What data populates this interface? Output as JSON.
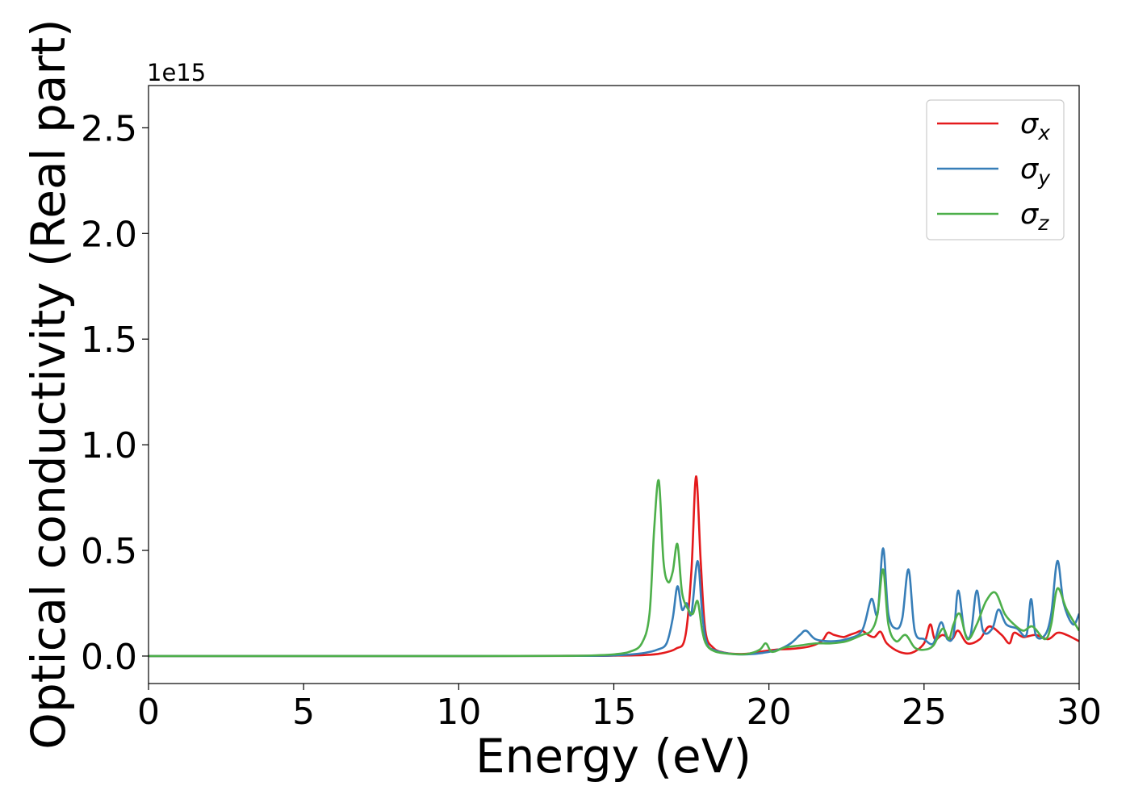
{
  "chart_data": {
    "type": "line",
    "xlabel": "Energy (eV)",
    "ylabel": "Optical conductivity (Real part)",
    "y_offset_label": "1e15",
    "xlim": [
      0,
      30
    ],
    "ylim": [
      -0.13,
      2.7
    ],
    "y_unit_multiplier": 1000000000000000.0,
    "x_ticks": [
      0,
      5,
      10,
      15,
      20,
      25,
      30
    ],
    "x_tick_labels": [
      "0",
      "5",
      "10",
      "15",
      "20",
      "25",
      "30"
    ],
    "y_ticks": [
      0.0,
      0.5,
      1.0,
      1.5,
      2.0,
      2.5
    ],
    "y_tick_labels": [
      "0.0",
      "0.5",
      "1.0",
      "1.5",
      "2.0",
      "2.5"
    ],
    "grid": false,
    "legend_position": "top-right",
    "series": [
      {
        "name": "σx",
        "symbol": "σ",
        "subscript": "x",
        "color": "#e41a1c",
        "x": [
          0,
          10,
          14,
          15,
          16,
          16.5,
          17.0,
          17.3,
          17.5,
          17.65,
          17.8,
          17.95,
          18.2,
          18.6,
          19.2,
          19.7,
          20.2,
          20.8,
          21.3,
          21.7,
          21.9,
          22.1,
          22.4,
          22.6,
          22.8,
          23.0,
          23.2,
          23.4,
          23.6,
          23.8,
          24.2,
          24.6,
          25.0,
          25.2,
          25.35,
          25.6,
          25.9,
          26.1,
          26.4,
          26.8,
          27.1,
          27.5,
          27.75,
          27.9,
          28.2,
          28.6,
          29.0,
          29.3,
          29.6,
          30.0
        ],
        "y": [
          0.0,
          0.0,
          0.001,
          0.002,
          0.005,
          0.012,
          0.035,
          0.09,
          0.4,
          0.85,
          0.45,
          0.12,
          0.04,
          0.015,
          0.01,
          0.02,
          0.03,
          0.035,
          0.045,
          0.07,
          0.11,
          0.1,
          0.09,
          0.1,
          0.11,
          0.12,
          0.1,
          0.09,
          0.115,
          0.06,
          0.02,
          0.015,
          0.06,
          0.15,
          0.08,
          0.1,
          0.08,
          0.12,
          0.06,
          0.08,
          0.14,
          0.1,
          0.06,
          0.11,
          0.09,
          0.1,
          0.08,
          0.11,
          0.1,
          0.07
        ]
      },
      {
        "name": "σy",
        "symbol": "σ",
        "subscript": "y",
        "color": "#377eb8",
        "x": [
          0,
          10,
          14,
          15,
          15.5,
          16.0,
          16.4,
          16.7,
          16.9,
          17.05,
          17.2,
          17.35,
          17.5,
          17.7,
          17.85,
          18.0,
          18.3,
          18.8,
          19.3,
          19.8,
          20.3,
          20.7,
          21.0,
          21.2,
          21.5,
          22.0,
          22.5,
          23.0,
          23.3,
          23.5,
          23.68,
          23.85,
          24.1,
          24.3,
          24.5,
          24.7,
          25.0,
          25.3,
          25.55,
          25.75,
          25.95,
          26.1,
          26.3,
          26.5,
          26.7,
          26.9,
          27.2,
          27.4,
          27.65,
          28.0,
          28.3,
          28.45,
          28.6,
          28.9,
          29.1,
          29.3,
          29.5,
          29.8,
          30.0
        ],
        "y": [
          0.0,
          0.0,
          0.001,
          0.003,
          0.007,
          0.015,
          0.03,
          0.06,
          0.18,
          0.33,
          0.22,
          0.25,
          0.2,
          0.45,
          0.2,
          0.06,
          0.025,
          0.01,
          0.008,
          0.015,
          0.03,
          0.06,
          0.1,
          0.12,
          0.08,
          0.07,
          0.08,
          0.12,
          0.27,
          0.2,
          0.51,
          0.2,
          0.13,
          0.18,
          0.41,
          0.12,
          0.08,
          0.06,
          0.16,
          0.08,
          0.1,
          0.31,
          0.12,
          0.1,
          0.31,
          0.12,
          0.13,
          0.22,
          0.15,
          0.13,
          0.1,
          0.27,
          0.1,
          0.1,
          0.2,
          0.45,
          0.25,
          0.15,
          0.2
        ]
      },
      {
        "name": "σz",
        "symbol": "σ",
        "subscript": "z",
        "color": "#4daf4a",
        "x": [
          0,
          10,
          13.5,
          14.5,
          15.0,
          15.5,
          15.9,
          16.15,
          16.3,
          16.45,
          16.6,
          16.75,
          16.9,
          17.05,
          17.2,
          17.4,
          17.55,
          17.7,
          17.85,
          18.0,
          18.3,
          18.8,
          19.3,
          19.7,
          19.9,
          20.1,
          20.5,
          21.0,
          21.5,
          22.0,
          22.5,
          23.0,
          23.3,
          23.5,
          23.68,
          23.85,
          24.1,
          24.4,
          24.7,
          25.0,
          25.3,
          25.6,
          25.8,
          25.95,
          26.15,
          26.4,
          26.7,
          27.0,
          27.3,
          27.6,
          27.9,
          28.2,
          28.5,
          28.9,
          29.1,
          29.3,
          29.6,
          30.0
        ],
        "y": [
          0.0,
          0.0,
          0.001,
          0.004,
          0.008,
          0.02,
          0.06,
          0.2,
          0.6,
          0.83,
          0.45,
          0.35,
          0.4,
          0.53,
          0.3,
          0.22,
          0.2,
          0.26,
          0.12,
          0.05,
          0.02,
          0.01,
          0.01,
          0.03,
          0.06,
          0.02,
          0.04,
          0.05,
          0.06,
          0.06,
          0.07,
          0.1,
          0.12,
          0.2,
          0.41,
          0.15,
          0.07,
          0.1,
          0.04,
          0.03,
          0.05,
          0.13,
          0.08,
          0.15,
          0.2,
          0.08,
          0.15,
          0.26,
          0.3,
          0.2,
          0.15,
          0.12,
          0.14,
          0.08,
          0.15,
          0.32,
          0.22,
          0.12
        ]
      }
    ]
  }
}
